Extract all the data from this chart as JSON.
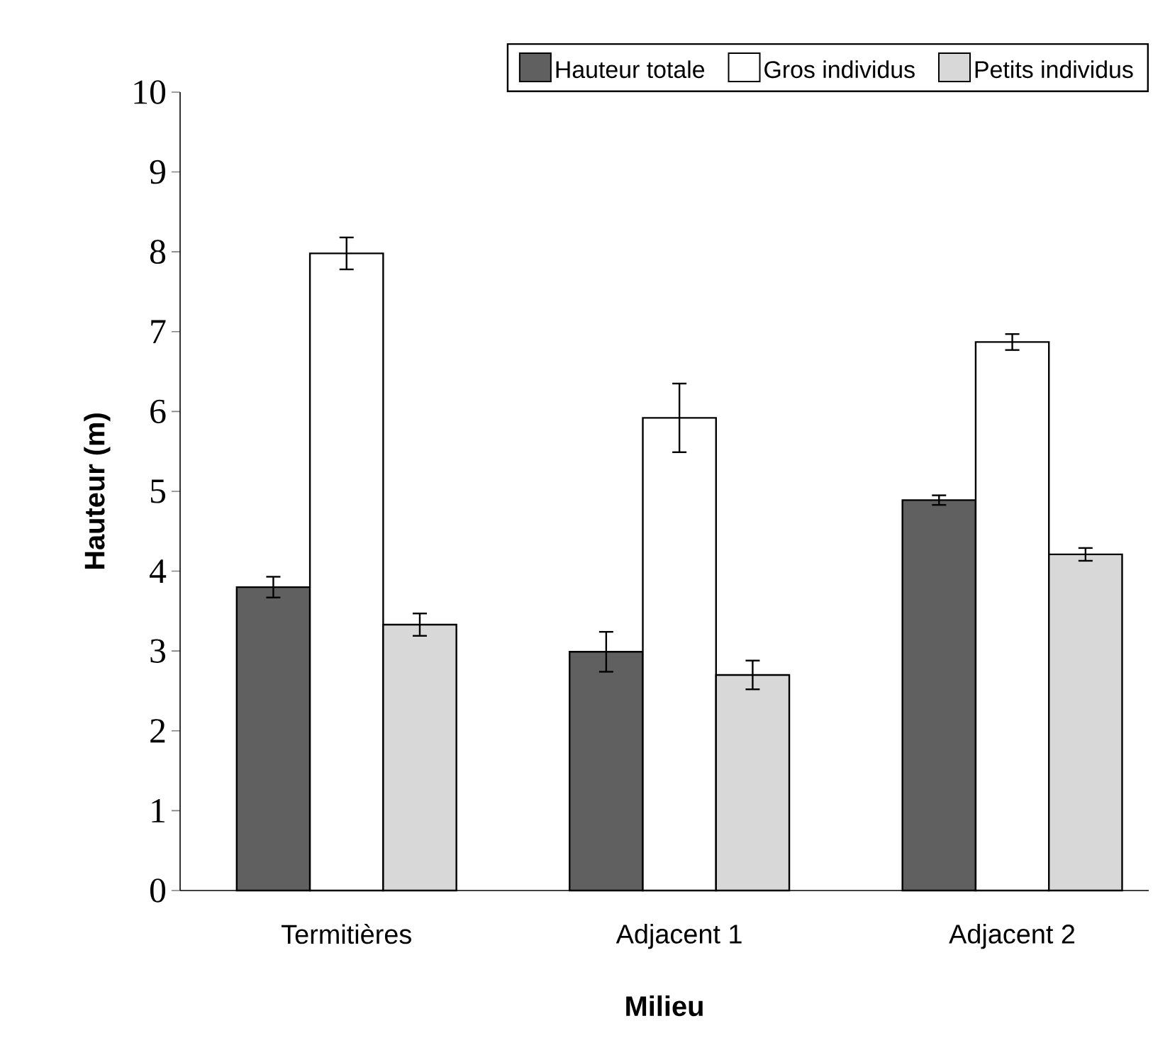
{
  "chart_data": {
    "type": "bar",
    "xlabel": "Milieu",
    "ylabel": "Hauteur (m)",
    "categories": [
      "Termitières",
      "Adjacent 1",
      "Adjacent 2"
    ],
    "series": [
      {
        "name": "Hauteur totale",
        "color": "#606060",
        "values": [
          3.8,
          2.99,
          4.89
        ],
        "errors": [
          0.13,
          0.25,
          0.06
        ]
      },
      {
        "name": "Gros individus",
        "color": "#ffffff",
        "values": [
          7.98,
          5.92,
          6.87
        ],
        "errors": [
          0.2,
          0.43,
          0.1
        ]
      },
      {
        "name": "Petits individus",
        "color": "#d8d8d8",
        "values": [
          3.33,
          2.7,
          4.21
        ],
        "errors": [
          0.14,
          0.18,
          0.08
        ]
      }
    ],
    "ylim": [
      0,
      10
    ],
    "yticks": [
      0,
      1,
      2,
      3,
      4,
      5,
      6,
      7,
      8,
      9,
      10
    ],
    "legend": "top",
    "grid": false
  }
}
